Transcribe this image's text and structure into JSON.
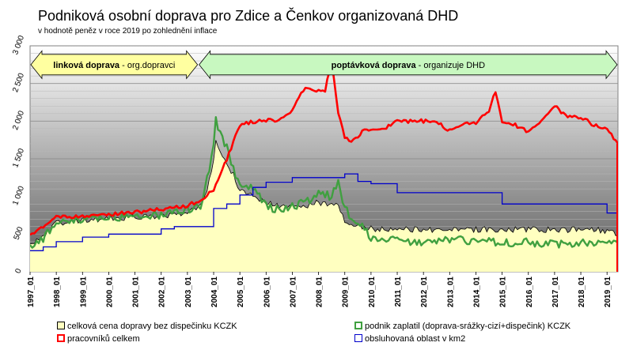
{
  "chart_data": {
    "type": "line",
    "title": "Podniková osobní doprava pro Zdice a Čenkov organizovaná DHD",
    "subtitle": "v hodnotě peněz v roce 2019 po zohlednění inflace",
    "xlim": [
      "1997-01",
      "2019-06"
    ],
    "ylim": [
      0,
      3000
    ],
    "y_ticks": [
      0,
      500,
      1000,
      1500,
      2000,
      2500,
      3000
    ],
    "y_tick_labels": [
      "0",
      "500",
      "1 000",
      "1 500",
      "2 000",
      "2 500",
      "3 000"
    ],
    "x_tick_labels": [
      "1997_01",
      "1998_01",
      "1999_01",
      "2000_01",
      "2001_01",
      "2002_01",
      "2003_01",
      "2004_01",
      "2005_01",
      "2006_01",
      "2007_01",
      "2008_01",
      "2009_01",
      "2010_01",
      "2011_01",
      "2012_01",
      "2013_01",
      "2014_01",
      "2015_01",
      "2016_01",
      "2017_01",
      "2018_01",
      "2019_01"
    ],
    "grid": true,
    "legend_position": "bottom",
    "series": [
      {
        "name": "celková cena dopravy bez dispečinku KCZK",
        "color": "#ffffc0",
        "edge_color": "#000000",
        "style": "area",
        "x": [
          "1997-01",
          "1997-07",
          "1998-01",
          "1999-01",
          "2000-01",
          "2001-01",
          "2002-01",
          "2002-07",
          "2003-01",
          "2003-07",
          "2003-10",
          "2004-01",
          "2004-02",
          "2004-04",
          "2004-07",
          "2004-10",
          "2005-01",
          "2005-07",
          "2006-01",
          "2006-07",
          "2007-01",
          "2007-07",
          "2008-01",
          "2008-07",
          "2008-10",
          "2009-01",
          "2009-04",
          "2009-10",
          "2010-01",
          "2010-07",
          "2011-01",
          "2012-01",
          "2013-01",
          "2014-01",
          "2015-01",
          "2016-01",
          "2017-01",
          "2018-01",
          "2018-07",
          "2019-01",
          "2019-06"
        ],
        "values": [
          350,
          450,
          650,
          680,
          700,
          720,
          740,
          760,
          790,
          860,
          1100,
          1500,
          1780,
          1560,
          1420,
          1300,
          1080,
          1020,
          920,
          870,
          860,
          880,
          920,
          900,
          880,
          680,
          620,
          580,
          570,
          560,
          560,
          560,
          560,
          560,
          560,
          560,
          560,
          560,
          560,
          540,
          510
        ]
      },
      {
        "name": "podnik zaplatil (doprava-srážky-cizí+dispečink) KCZK",
        "color": "#40a040",
        "style": "line",
        "x": [
          "1997-01",
          "1997-07",
          "1998-01",
          "1999-01",
          "2000-01",
          "2001-01",
          "2002-01",
          "2002-07",
          "2003-01",
          "2003-07",
          "2003-10",
          "2004-01",
          "2004-02",
          "2004-04",
          "2004-07",
          "2004-10",
          "2005-01",
          "2005-07",
          "2006-01",
          "2006-07",
          "2007-01",
          "2007-07",
          "2008-01",
          "2008-07",
          "2008-10",
          "2009-01",
          "2009-04",
          "2009-10",
          "2010-01",
          "2010-07",
          "2011-01",
          "2012-01",
          "2013-01",
          "2014-01",
          "2015-01",
          "2016-01",
          "2017-01",
          "2018-01",
          "2018-07",
          "2019-01",
          "2019-06"
        ],
        "values": [
          300,
          450,
          650,
          690,
          720,
          740,
          760,
          790,
          820,
          880,
          1250,
          1650,
          2000,
          1850,
          1640,
          1380,
          1120,
          1100,
          880,
          820,
          870,
          920,
          1050,
          1000,
          1200,
          850,
          700,
          580,
          420,
          430,
          420,
          400,
          420,
          420,
          390,
          390,
          360,
          370,
          400,
          420,
          380
        ]
      },
      {
        "name": "pracovníků celkem",
        "color": "#ff0000",
        "style": "line",
        "x": [
          "1997-01",
          "1997-07",
          "1998-01",
          "1999-01",
          "2000-01",
          "2001-01",
          "2002-01",
          "2002-07",
          "2003-01",
          "2003-07",
          "2004-01",
          "2004-07",
          "2005-01",
          "2005-07",
          "2006-01",
          "2006-07",
          "2007-01",
          "2007-07",
          "2008-01",
          "2008-04",
          "2008-07",
          "2008-10",
          "2009-01",
          "2009-04",
          "2009-10",
          "2010-01",
          "2010-07",
          "2011-01",
          "2012-01",
          "2012-07",
          "2013-01",
          "2013-07",
          "2014-01",
          "2014-07",
          "2014-10",
          "2015-01",
          "2015-07",
          "2016-01",
          "2016-07",
          "2017-01",
          "2017-07",
          "2018-01",
          "2018-07",
          "2019-01",
          "2019-06"
        ],
        "values": [
          480,
          600,
          720,
          730,
          760,
          790,
          830,
          850,
          880,
          950,
          1100,
          1500,
          1950,
          1990,
          2010,
          2000,
          2150,
          2450,
          2400,
          2400,
          2800,
          2100,
          1800,
          1720,
          1880,
          1900,
          1900,
          2000,
          2000,
          2000,
          1870,
          1950,
          1980,
          2150,
          2400,
          2000,
          1950,
          1850,
          2000,
          2200,
          2050,
          2050,
          1950,
          1900,
          1700
        ]
      },
      {
        "name": "obsluhovaná oblast v km2",
        "color": "#0000cc",
        "style": "step",
        "x": [
          "1997-01",
          "1997-07",
          "1998-01",
          "1999-01",
          "2000-01",
          "2002-01",
          "2002-07",
          "2003-01",
          "2004-01",
          "2004-07",
          "2005-01",
          "2005-07",
          "2006-01",
          "2007-01",
          "2009-01",
          "2009-07",
          "2010-01",
          "2011-01",
          "2015-01",
          "2016-01",
          "2018-01",
          "2019-01",
          "2019-06"
        ],
        "values": [
          280,
          330,
          400,
          460,
          500,
          570,
          600,
          600,
          840,
          900,
          1020,
          1120,
          1190,
          1250,
          1300,
          1200,
          1170,
          1050,
          900,
          900,
          900,
          780,
          780
        ]
      }
    ],
    "annotations": [
      {
        "text_bold": "linková doprava",
        "text_rest": " - org.dopravci",
        "x_from": "1997-01",
        "x_to": "2003-06",
        "y": 2750
      },
      {
        "text_bold": "poptávková doprava",
        "text_rest": " - organizuje DHD",
        "x_from": "2003-06",
        "x_to": "2019-06",
        "y": 2750
      }
    ]
  }
}
